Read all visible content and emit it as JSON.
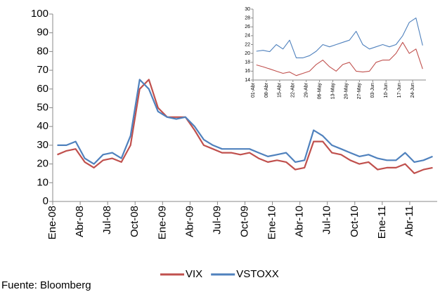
{
  "chart_data": [
    {
      "type": "line",
      "categories": [
        "Ene-08",
        null,
        null,
        "Abr-08",
        null,
        null,
        "Jul-08",
        null,
        null,
        "Oct-08",
        null,
        null,
        "Ene-09",
        null,
        null,
        "Abr-09",
        null,
        null,
        "Jul-09",
        null,
        null,
        "Oct-09",
        null,
        null,
        "Ene-10",
        null,
        null,
        "Abr-10",
        null,
        null,
        "Jul-10",
        null,
        null,
        "Oct-10",
        null,
        null,
        "Ene-11",
        null,
        null,
        "Abr-11",
        null,
        null
      ],
      "series": [
        {
          "name": "VIX",
          "color": "#c0504d",
          "values": [
            25,
            27,
            28,
            21,
            18,
            22,
            23,
            21,
            30,
            60,
            65,
            50,
            45,
            45,
            45,
            38,
            30,
            28,
            26,
            26,
            25,
            26,
            23,
            21,
            22,
            21,
            17,
            18,
            32,
            32,
            26,
            25,
            22,
            20,
            21,
            17,
            18,
            18,
            20,
            15,
            17,
            18
          ]
        },
        {
          "name": "VSTOXX",
          "color": "#4f81bd",
          "values": [
            30,
            30,
            32,
            23,
            20,
            25,
            26,
            23,
            35,
            65,
            60,
            48,
            45,
            44,
            45,
            40,
            33,
            30,
            28,
            28,
            28,
            28,
            26,
            24,
            25,
            26,
            21,
            22,
            38,
            35,
            30,
            28,
            26,
            24,
            25,
            23,
            22,
            22,
            26,
            21,
            22,
            24
          ]
        }
      ],
      "ylim": [
        0,
        100
      ],
      "yticks": [
        0,
        10,
        20,
        30,
        40,
        50,
        60,
        70,
        80,
        90,
        100
      ],
      "legend": "bottom",
      "source": "Fuente: Bloomberg"
    },
    {
      "type": "line",
      "categories": [
        "01-Abr",
        null,
        "08-Abr",
        null,
        "15-Abr",
        null,
        "22-Abr",
        null,
        "29-Abr",
        null,
        "06-May",
        null,
        "13-May",
        null,
        "20-May",
        null,
        "27-May",
        null,
        "03-Jun",
        null,
        "10-Jun",
        null,
        "17-Jun",
        null,
        "24-Jun",
        null
      ],
      "series": [
        {
          "name": "VIX",
          "color": "#c0504d",
          "values": [
            17.4,
            17,
            16.5,
            16,
            15.5,
            15.8,
            15,
            15.5,
            16,
            17.5,
            18.5,
            17,
            16,
            17.5,
            18,
            16,
            15.8,
            16,
            18,
            18.5,
            18.5,
            20,
            22.5,
            20,
            21,
            16.5
          ]
        },
        {
          "name": "VSTOXX",
          "color": "#4f81bd",
          "values": [
            20.5,
            20.7,
            20.4,
            22,
            21,
            23,
            19,
            19,
            19.5,
            20.5,
            22,
            21.5,
            22,
            22.5,
            23,
            25,
            22,
            21,
            21.5,
            22,
            21.5,
            22,
            24,
            27,
            28,
            21.8
          ]
        }
      ],
      "ylim": [
        14,
        30
      ],
      "yticks": [
        14,
        16,
        18,
        20,
        22,
        24,
        26,
        28,
        30
      ],
      "grid": false
    }
  ]
}
